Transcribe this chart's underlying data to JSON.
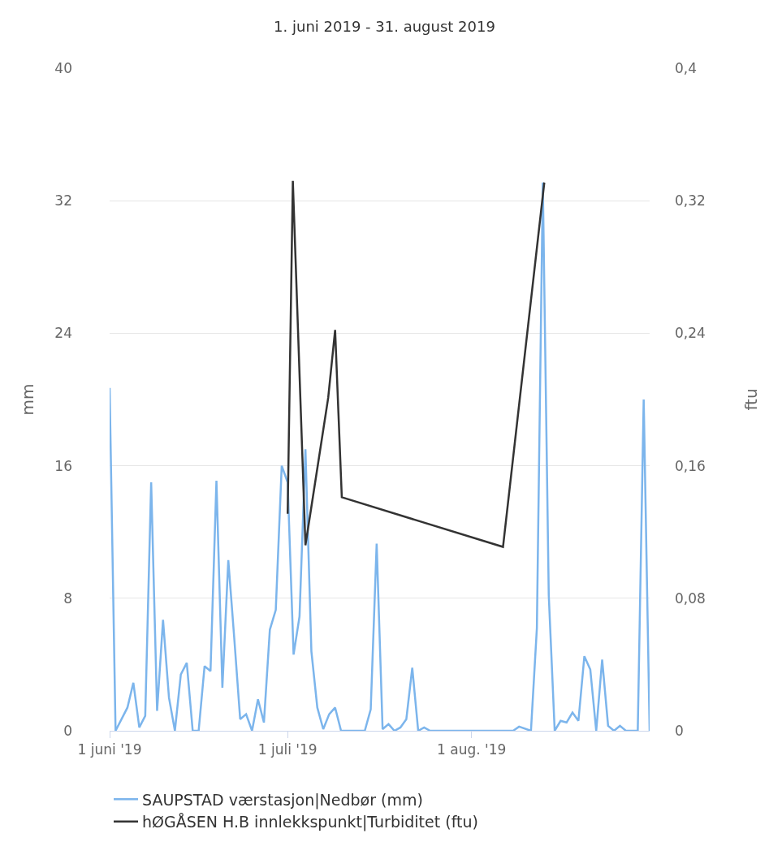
{
  "chart_data": {
    "type": "line",
    "title": "1. juni 2019 - 31. august 2019",
    "ylabel": "mm",
    "y2label": "ftu",
    "xlim": [
      "2019-06-01",
      "2019-08-31"
    ],
    "xticks": [
      {
        "value": "2019-06-01",
        "label": "1 juni '19"
      },
      {
        "value": "2019-07-01",
        "label": "1 juli '19"
      },
      {
        "value": "2019-08-01",
        "label": "1 aug. '19"
      }
    ],
    "ylim": [
      0,
      40
    ],
    "yticks": [
      0,
      8,
      16,
      24,
      32,
      40
    ],
    "y2lim": [
      0,
      0.4
    ],
    "y2ticks": [
      {
        "value": 0,
        "label": "0"
      },
      {
        "value": 0.08,
        "label": "0,08"
      },
      {
        "value": 0.16,
        "label": "0,16"
      },
      {
        "value": 0.24,
        "label": "0,24"
      },
      {
        "value": 0.32,
        "label": "0,32"
      },
      {
        "value": 0.4,
        "label": "0,4"
      }
    ],
    "grid": "y",
    "legend": "bottom",
    "marker": "none",
    "line_style": "solid",
    "series": [
      {
        "name": "SAUPSTAD værstasjon|Nedbør (mm)",
        "color": "#7cb5ec",
        "x": [
          "2019-06-01",
          "2019-06-02",
          "2019-06-04",
          "2019-06-05",
          "2019-06-06",
          "2019-06-07",
          "2019-06-08",
          "2019-06-09",
          "2019-06-10",
          "2019-06-11",
          "2019-06-12",
          "2019-06-13",
          "2019-06-14",
          "2019-06-15",
          "2019-06-16",
          "2019-06-17",
          "2019-06-18",
          "2019-06-19",
          "2019-06-20",
          "2019-06-21",
          "2019-06-22",
          "2019-06-23",
          "2019-06-24",
          "2019-06-25",
          "2019-06-26",
          "2019-06-27",
          "2019-06-28",
          "2019-06-29",
          "2019-06-30",
          "2019-07-01",
          "2019-07-02",
          "2019-07-03",
          "2019-07-04",
          "2019-07-05",
          "2019-07-06",
          "2019-07-07",
          "2019-07-08",
          "2019-07-09",
          "2019-07-10",
          "2019-07-14",
          "2019-07-15",
          "2019-07-16",
          "2019-07-17",
          "2019-07-18",
          "2019-07-19",
          "2019-07-20",
          "2019-07-21",
          "2019-07-22",
          "2019-07-23",
          "2019-07-24",
          "2019-07-25",
          "2019-08-08",
          "2019-08-09",
          "2019-08-11",
          "2019-08-12",
          "2019-08-13",
          "2019-08-14",
          "2019-08-15",
          "2019-08-16",
          "2019-08-17",
          "2019-08-18",
          "2019-08-19",
          "2019-08-20",
          "2019-08-21",
          "2019-08-22",
          "2019-08-23",
          "2019-08-24",
          "2019-08-25",
          "2019-08-26",
          "2019-08-27",
          "2019-08-29",
          "2019-08-30",
          "2019-08-31"
        ],
        "values": [
          20.7,
          0,
          1.4,
          2.9,
          0.2,
          0.9,
          15.0,
          1.2,
          6.7,
          2.0,
          0,
          3.4,
          4.1,
          0,
          0,
          3.9,
          3.6,
          15.1,
          2.6,
          10.3,
          5.6,
          0.7,
          1.0,
          0,
          1.9,
          0.5,
          6.1,
          7.3,
          16.0,
          15.0,
          4.6,
          6.9,
          17.0,
          4.8,
          1.4,
          0.1,
          1.0,
          1.4,
          0,
          0,
          1.3,
          11.3,
          0.1,
          0.4,
          0,
          0.2,
          0.7,
          3.8,
          0,
          0.2,
          0,
          0,
          0.25,
          0,
          6.2,
          33.1,
          8.2,
          0,
          0.6,
          0.5,
          1.1,
          0.6,
          4.5,
          3.7,
          0,
          4.3,
          0.3,
          0,
          0.3,
          0,
          0,
          20.0,
          0
        ]
      },
      {
        "name": "hØGÅSEN H.B innlekkspunkt|Turbiditet (ftu)",
        "color": "#333333",
        "axis": "y2",
        "x": [
          "2019-07-01T00:00",
          "2019-07-01T21:00",
          "2019-07-04T00:00",
          "2019-07-07T20:00",
          "2019-07-09T00:00",
          "2019-07-10T03:00",
          "2019-08-06T07:00",
          "2019-08-13T06:00"
        ],
        "values": [
          0.131,
          0.332,
          0.112,
          0.201,
          0.242,
          0.141,
          0.111,
          0.331
        ]
      }
    ]
  }
}
